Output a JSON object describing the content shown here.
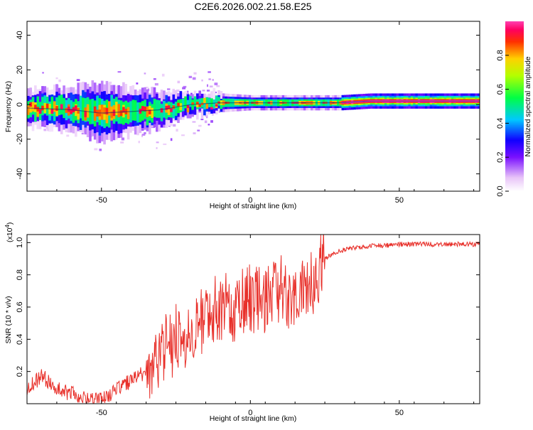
{
  "title": "C2E6.2026.002.21.58.E25",
  "colors": {
    "snr_line": "#e8302a",
    "trace_dark": "#10207a"
  },
  "colorbar": {
    "label": "Normalized spectral amplitude",
    "ticks": [
      "0.0",
      "0.2",
      "0.4",
      "0.6",
      "0.8"
    ],
    "tick_values": [
      0.0,
      0.2,
      0.4,
      0.6,
      0.8
    ],
    "range": [
      0,
      1
    ]
  },
  "chart_data": [
    {
      "type": "heatmap",
      "name": "spectrogram",
      "xlabel": "Height of straight line (km)",
      "ylabel": "Frequency (Hz)",
      "xlim": [
        -75,
        77
      ],
      "ylim": [
        -50,
        48
      ],
      "xticks": [
        "-50",
        "0",
        "50"
      ],
      "xtick_values": [
        -50,
        0,
        50
      ],
      "yticks": [
        "40",
        "20",
        "0",
        "-20",
        "-40"
      ],
      "ytick_values": [
        40,
        20,
        0,
        -20,
        -40
      ],
      "description_points": {
        "x": [
          -75,
          -60,
          -50,
          -40,
          -30,
          -20,
          -10,
          0,
          10,
          20,
          30,
          40,
          50,
          60,
          77
        ],
        "frequency": [
          -2,
          -3,
          -5,
          -4,
          -3,
          0,
          1,
          1,
          1,
          1,
          1,
          2,
          2,
          2,
          2
        ],
        "spread": [
          5,
          6,
          8,
          6,
          5,
          3,
          2.5,
          2,
          2,
          2,
          2,
          2,
          2,
          2,
          2
        ]
      }
    },
    {
      "type": "line",
      "name": "snr",
      "xlabel": "Height of straight line (km)",
      "ylabel": "SNR (10 * v/v)",
      "yscale_label": "(x10",
      "yscale_exp": "4",
      "yscale_close": ")",
      "xlim": [
        -75,
        77
      ],
      "ylim": [
        0,
        1.05
      ],
      "xticks": [
        "-50",
        "0",
        "50"
      ],
      "xtick_values": [
        -50,
        0,
        50
      ],
      "yticks": [
        "0.2",
        "0.4",
        "0.6",
        "0.8",
        "1.0"
      ],
      "ytick_values": [
        0.2,
        0.4,
        0.6,
        0.8,
        1.0
      ],
      "series": [
        {
          "name": "SNR",
          "x": [
            -75,
            -70,
            -65,
            -60,
            -55,
            -50,
            -45,
            -40,
            -35,
            -30,
            -25,
            -20,
            -15,
            -10,
            -5,
            0,
            5,
            10,
            15,
            20,
            25,
            30,
            35,
            40,
            45,
            50,
            55,
            60,
            65,
            70,
            77
          ],
          "y": [
            0.1,
            0.17,
            0.1,
            0.06,
            0.02,
            0.02,
            0.09,
            0.14,
            0.2,
            0.32,
            0.4,
            0.45,
            0.55,
            0.6,
            0.6,
            0.66,
            0.65,
            0.72,
            0.62,
            0.73,
            0.9,
            0.95,
            0.97,
            0.98,
            0.98,
            0.99,
            0.99,
            0.99,
            0.99,
            0.99,
            0.99
          ]
        }
      ]
    }
  ]
}
